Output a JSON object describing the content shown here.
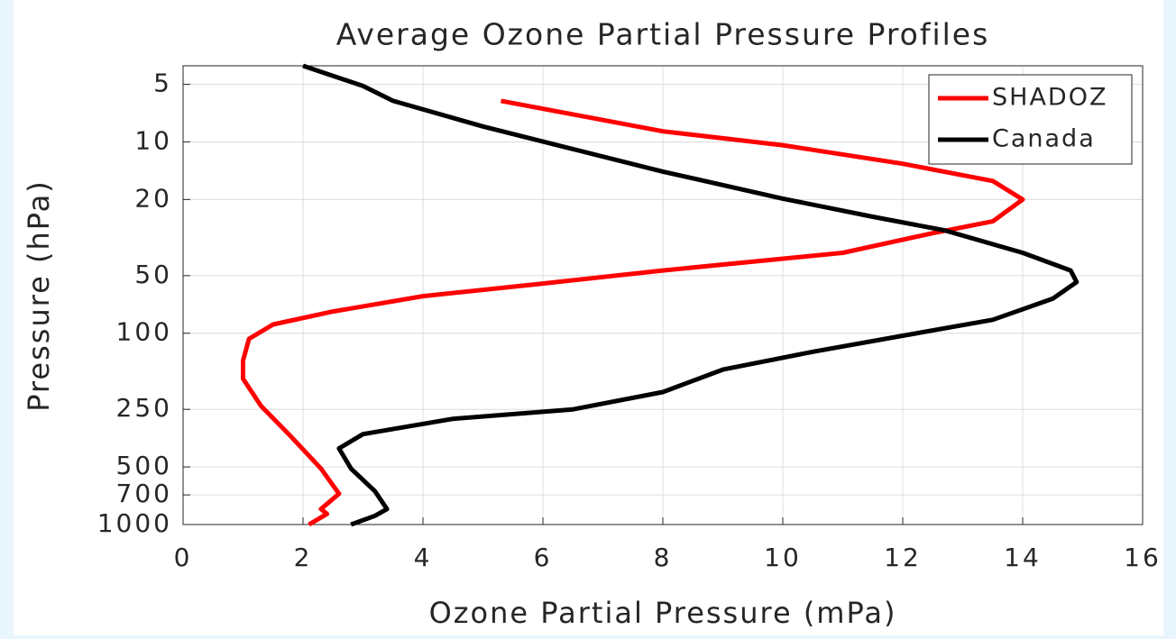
{
  "chart_data": {
    "type": "line",
    "title": "Average Ozone Partial Pressure Profiles",
    "xlabel": "Ozone Partial Pressure (mPa)",
    "ylabel": "Pressure (hPa)",
    "xlim": [
      0,
      16
    ],
    "xticks": [
      0,
      2,
      4,
      6,
      8,
      10,
      12,
      14,
      16
    ],
    "ylim": [
      4,
      1000
    ],
    "yticks": [
      5,
      10,
      20,
      50,
      100,
      250,
      500,
      700,
      1000
    ],
    "yscale": "log",
    "y_reversed": true,
    "grid": true,
    "legend": "upper right",
    "series": [
      {
        "name": "SHADOZ",
        "color": "#ff0000",
        "x": [
          5.3,
          8,
          10,
          12,
          13.5,
          14,
          13.5,
          12.5,
          11,
          8,
          6,
          4,
          2.5,
          1.5,
          1.1,
          1.0,
          1.0,
          1.3,
          1.8,
          2.3,
          2.6,
          2.3,
          2.4,
          2.1
        ],
        "values": [
          6.1,
          8.8,
          10.4,
          13,
          16,
          20,
          26,
          30,
          38,
          47,
          55,
          64,
          77,
          90,
          107,
          139,
          173,
          240,
          347,
          510,
          690,
          830,
          880,
          1000
        ]
      },
      {
        "name": "Canada",
        "color": "#000000",
        "x": [
          2.0,
          3,
          3.5,
          5,
          6.5,
          8,
          10,
          11.5,
          12.7,
          14,
          14.8,
          14.9,
          14.5,
          13.5,
          12,
          10.5,
          9,
          8,
          6.5,
          4.5,
          3.0,
          2.6,
          2.8,
          3.2,
          3.4,
          3.2,
          2.8
        ],
        "values": [
          4.0,
          5.1,
          6.1,
          8.3,
          10.9,
          14.3,
          19.8,
          24.6,
          29,
          38,
          47,
          54,
          66,
          85,
          103,
          125,
          155,
          203,
          250,
          280,
          337,
          400,
          510,
          670,
          830,
          900,
          1000
        ]
      }
    ]
  }
}
